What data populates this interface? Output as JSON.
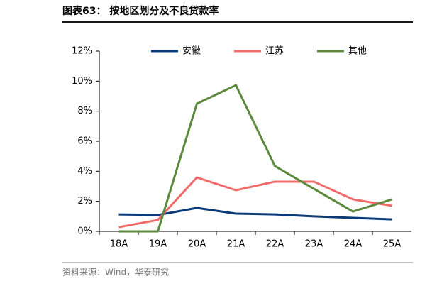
{
  "chart_data": {
    "type": "line",
    "title": "图表63：  按地区划分及不良贷款率",
    "source": "资料来源：Wind，华泰研究",
    "categories": [
      "18A",
      "19A",
      "20A",
      "21A",
      "22A",
      "23A",
      "24A",
      "25A"
    ],
    "series": [
      {
        "name": "安徽",
        "color": "#0b3a78",
        "values": [
          1.13,
          1.09,
          1.56,
          1.18,
          1.13,
          1.0,
          0.9,
          0.8
        ]
      },
      {
        "name": "江苏",
        "color": "#f26b6b",
        "values": [
          0.28,
          0.76,
          3.59,
          2.74,
          3.31,
          3.31,
          2.13,
          1.7
        ]
      },
      {
        "name": "其他",
        "color": "#5b8a3c",
        "values": [
          0,
          0,
          8.5,
          9.73,
          4.35,
          2.83,
          1.32,
          2.13
        ]
      }
    ],
    "ylim": [
      0,
      12
    ],
    "yticks": [
      {
        "value": 0,
        "label": "0%"
      },
      {
        "value": 2,
        "label": "2%"
      },
      {
        "value": 4,
        "label": "4%"
      },
      {
        "value": 6,
        "label": "6%"
      },
      {
        "value": 8,
        "label": "8%"
      },
      {
        "value": 10,
        "label": "10%"
      },
      {
        "value": 12,
        "label": "12%"
      }
    ],
    "legend": "top"
  }
}
